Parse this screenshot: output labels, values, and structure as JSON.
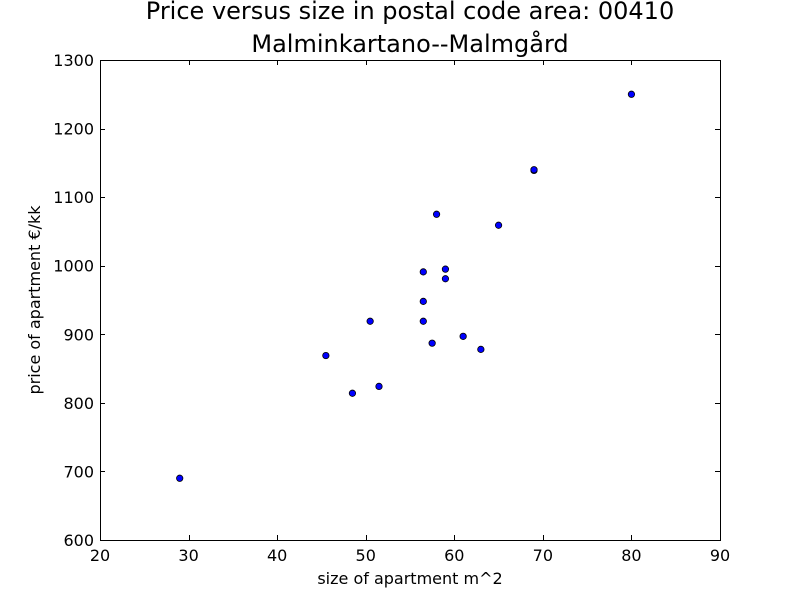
{
  "chart_data": {
    "type": "scatter",
    "title": [
      "Price versus size in postal code area: 00410",
      "Malminkartano--Malmgård"
    ],
    "xlabel": "size of apartment m^2",
    "ylabel": "price of apartment €/kk",
    "xlim": [
      20,
      90
    ],
    "ylim": [
      600,
      1300
    ],
    "xticks": [
      20,
      30,
      40,
      50,
      60,
      70,
      80,
      90
    ],
    "yticks": [
      600,
      700,
      800,
      900,
      1000,
      1100,
      1200,
      1300
    ],
    "grid": false,
    "marker_color": "#0000ff",
    "marker_edge_color": "#000000",
    "points": [
      {
        "x": 29,
        "y": 690
      },
      {
        "x": 45.5,
        "y": 869
      },
      {
        "x": 48.5,
        "y": 814
      },
      {
        "x": 50.5,
        "y": 919
      },
      {
        "x": 51.5,
        "y": 824
      },
      {
        "x": 56.5,
        "y": 991
      },
      {
        "x": 56.5,
        "y": 948
      },
      {
        "x": 56.5,
        "y": 919
      },
      {
        "x": 57.5,
        "y": 887
      },
      {
        "x": 58,
        "y": 1075
      },
      {
        "x": 59,
        "y": 995
      },
      {
        "x": 59,
        "y": 981
      },
      {
        "x": 61,
        "y": 897
      },
      {
        "x": 63,
        "y": 878
      },
      {
        "x": 65,
        "y": 1059
      },
      {
        "x": 69,
        "y": 1139
      },
      {
        "x": 69,
        "y": 1140
      },
      {
        "x": 80,
        "y": 1250
      }
    ]
  }
}
